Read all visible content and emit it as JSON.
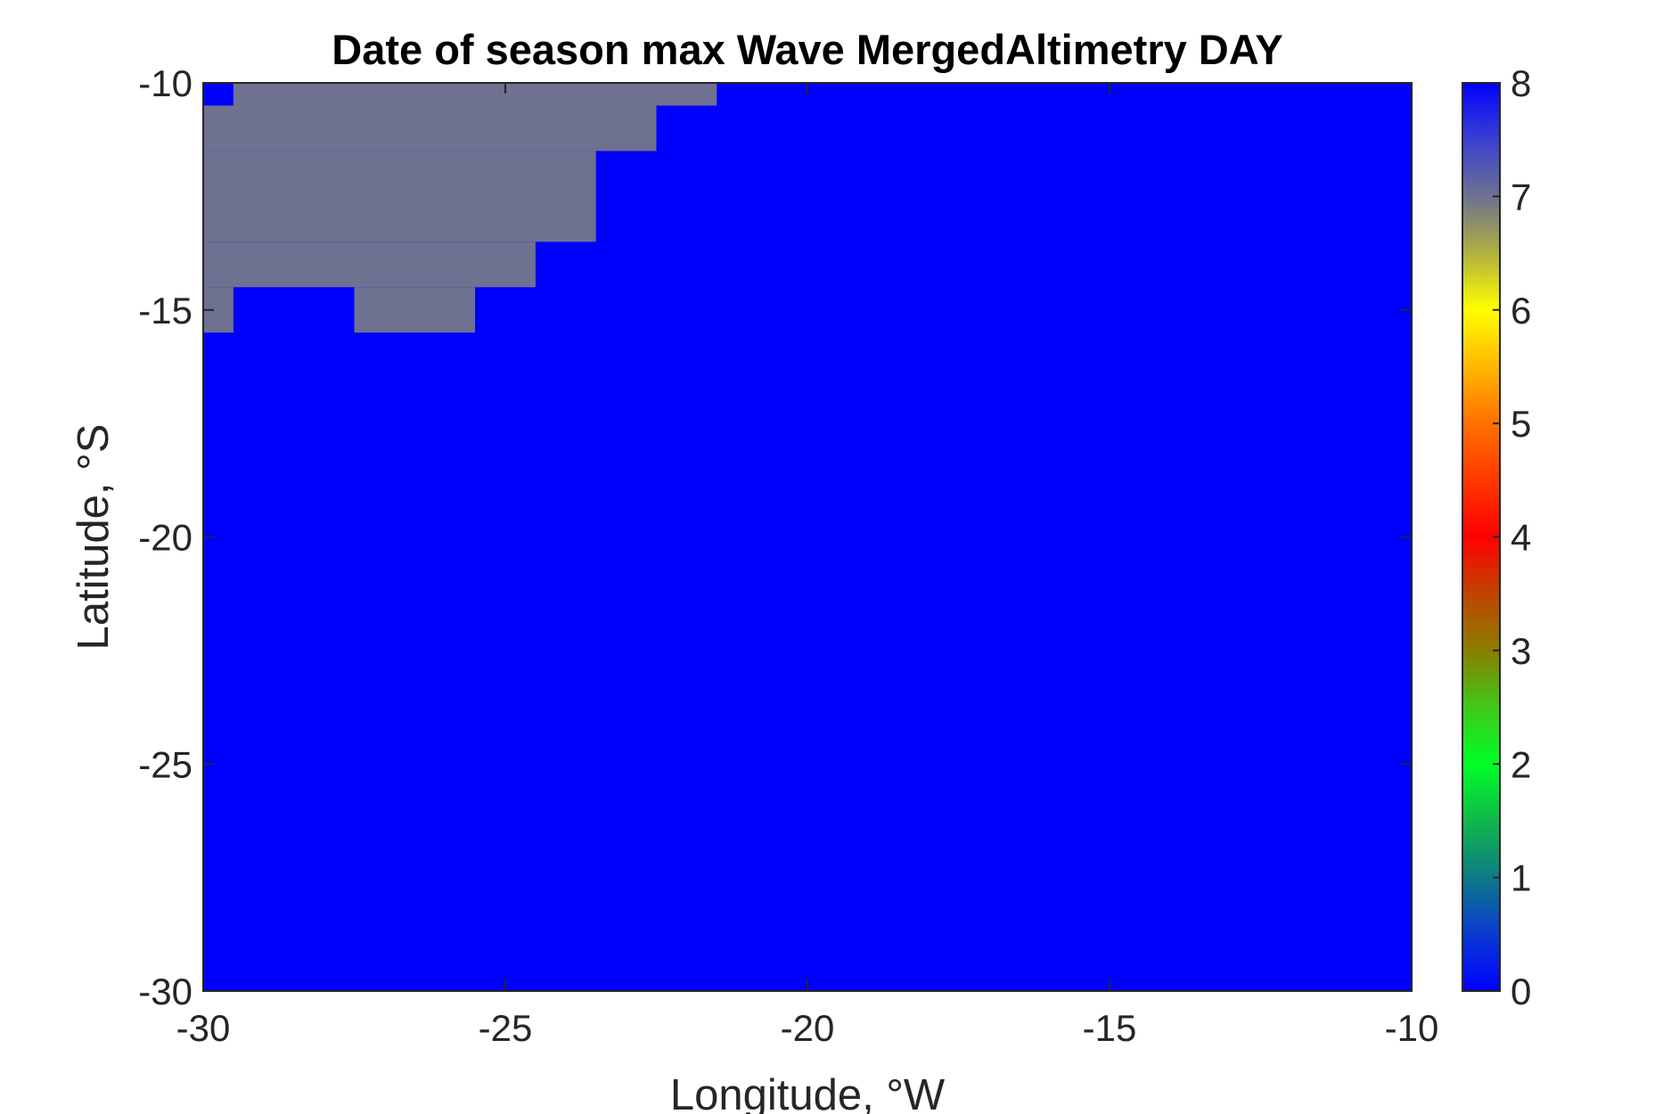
{
  "chart_data": {
    "type": "heatmap",
    "title": "Date of season max Wave MergedAltimetry DAY",
    "xlabel": "Longitude, °W",
    "ylabel": "Latitude, °S",
    "xlim": [
      -30,
      -10
    ],
    "ylim": [
      -30,
      -10
    ],
    "xticks": [
      -30,
      -25,
      -20,
      -15,
      -10
    ],
    "yticks": [
      -10,
      -15,
      -20,
      -25,
      -30
    ],
    "grid": false,
    "background_value": 0,
    "cell_size_deg": 1,
    "cells": [
      {
        "lon": [
          -30,
          -29.5
        ],
        "lat": [
          -10.5,
          -10
        ],
        "value": 0
      },
      {
        "lon": [
          -29.5,
          -21.5
        ],
        "lat": [
          -10.5,
          -10
        ],
        "value": 7
      },
      {
        "lon": [
          -30,
          -22.5
        ],
        "lat": [
          -11.5,
          -10.5
        ],
        "value": 7
      },
      {
        "lon": [
          -30,
          -23.5
        ],
        "lat": [
          -13.5,
          -11.5
        ],
        "value": 7
      },
      {
        "lon": [
          -30,
          -24.5
        ],
        "lat": [
          -14.5,
          -13.5
        ],
        "value": 7
      },
      {
        "lon": [
          -30,
          -29.5
        ],
        "lat": [
          -15.5,
          -14.5
        ],
        "value": 7
      },
      {
        "lon": [
          -27.5,
          -25.5
        ],
        "lat": [
          -15.5,
          -14.5
        ],
        "value": 7
      }
    ],
    "colorbar": {
      "range": [
        0,
        8
      ],
      "ticks": [
        0,
        1,
        2,
        3,
        4,
        5,
        6,
        7,
        8
      ],
      "colormap": [
        {
          "v": 0,
          "color": "#0000ff"
        },
        {
          "v": 0.5,
          "color": "#0a3ad2"
        },
        {
          "v": 1,
          "color": "#0e7a86"
        },
        {
          "v": 1.5,
          "color": "#10b84a"
        },
        {
          "v": 2,
          "color": "#00ff28"
        },
        {
          "v": 2.5,
          "color": "#40c818"
        },
        {
          "v": 3,
          "color": "#8a7e00"
        },
        {
          "v": 3.5,
          "color": "#c04400"
        },
        {
          "v": 4,
          "color": "#ff0000"
        },
        {
          "v": 5,
          "color": "#ff7000"
        },
        {
          "v": 6,
          "color": "#ffff00"
        },
        {
          "v": 6.5,
          "color": "#b0b040"
        },
        {
          "v": 7,
          "color": "#6e7190"
        },
        {
          "v": 7.5,
          "color": "#3a40d0"
        },
        {
          "v": 8,
          "color": "#0000ff"
        }
      ]
    },
    "colors": {
      "cell_value_7": "#6e7190",
      "cell_value_0": "#0000ff"
    }
  }
}
